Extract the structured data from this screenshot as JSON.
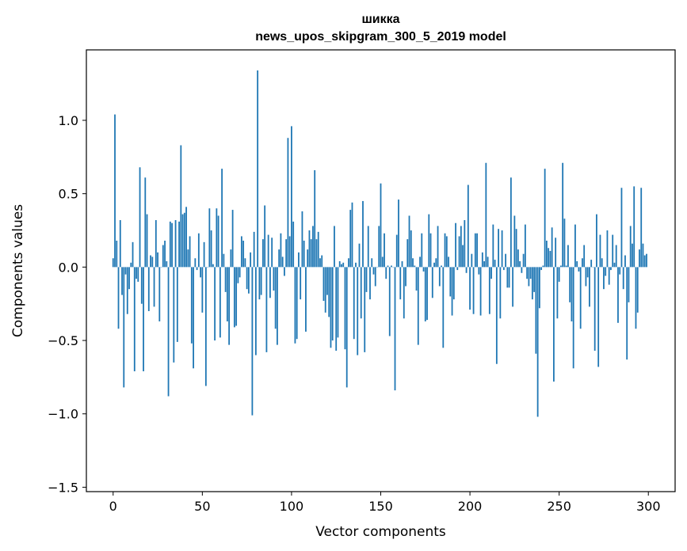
{
  "chart_data": {
    "type": "bar",
    "title_line1": "шикка",
    "title_line2": "news_upos_skipgram_300_5_2019 model",
    "xlabel": "Vector components",
    "ylabel": "Components values",
    "xlim": [
      -15,
      315
    ],
    "ylim": [
      -1.53,
      1.48
    ],
    "xticks": [
      0,
      50,
      100,
      150,
      200,
      250,
      300
    ],
    "xtick_labels": [
      "0",
      "50",
      "100",
      "150",
      "200",
      "250",
      "300"
    ],
    "yticks": [
      -1.5,
      -1.0,
      -0.5,
      0.0,
      0.5,
      1.0
    ],
    "ytick_labels": [
      "−1.5",
      "−1.0",
      "−0.5",
      "0.0",
      "0.5",
      "1.0"
    ],
    "color": "#1f77b4",
    "values": [
      0.06,
      1.04,
      0.18,
      -0.42,
      0.32,
      -0.19,
      -0.82,
      -0.05,
      -0.32,
      -0.15,
      0.03,
      0.17,
      -0.71,
      -0.08,
      -0.1,
      0.68,
      -0.25,
      -0.71,
      0.61,
      0.36,
      -0.3,
      0.08,
      0.07,
      -0.27,
      0.32,
      0.1,
      -0.37,
      0.0,
      0.15,
      0.18,
      0.04,
      -0.88,
      0.31,
      0.3,
      -0.65,
      0.32,
      -0.51,
      0.31,
      0.83,
      0.36,
      0.37,
      0.41,
      0.12,
      0.21,
      -0.52,
      -0.69,
      0.06,
      -0.02,
      0.23,
      -0.07,
      -0.31,
      0.17,
      -0.81,
      0.0,
      0.4,
      0.25,
      0.02,
      -0.5,
      0.4,
      0.35,
      -0.48,
      0.67,
      0.09,
      -0.17,
      -0.37,
      -0.53,
      0.12,
      0.39,
      -0.41,
      -0.4,
      -0.11,
      -0.07,
      0.21,
      0.18,
      0.06,
      -0.15,
      -0.18,
      0.1,
      -1.01,
      0.24,
      -0.6,
      1.34,
      -0.22,
      -0.19,
      0.19,
      0.42,
      -0.58,
      0.22,
      -0.21,
      0.2,
      -0.16,
      -0.42,
      -0.53,
      0.12,
      0.23,
      0.07,
      -0.06,
      0.19,
      0.88,
      0.21,
      0.96,
      0.31,
      -0.52,
      -0.49,
      0.1,
      -0.22,
      0.38,
      0.18,
      -0.44,
      0.12,
      0.25,
      0.19,
      0.28,
      0.66,
      0.19,
      0.24,
      0.06,
      0.08,
      -0.23,
      -0.31,
      -0.19,
      -0.34,
      -0.55,
      -0.5,
      0.28,
      -0.57,
      -0.48,
      0.04,
      0.02,
      0.03,
      -0.56,
      -0.82,
      0.06,
      0.39,
      0.44,
      -0.49,
      0.03,
      -0.6,
      0.16,
      -0.35,
      0.45,
      -0.58,
      -0.17,
      0.28,
      -0.22,
      0.06,
      -0.05,
      -0.13,
      0.0,
      0.28,
      0.57,
      0.07,
      0.23,
      -0.08,
      0.01,
      -0.47,
      0.01,
      0.0,
      -0.84,
      0.22,
      0.46,
      -0.22,
      0.04,
      -0.35,
      -0.13,
      0.19,
      0.35,
      0.25,
      0.06,
      0.01,
      -0.16,
      -0.53,
      0.07,
      0.23,
      -0.03,
      -0.37,
      -0.36,
      0.36,
      0.23,
      -0.21,
      0.03,
      0.06,
      0.28,
      -0.13,
      0.01,
      -0.55,
      0.23,
      0.21,
      0.07,
      -0.2,
      -0.33,
      -0.22,
      0.3,
      -0.02,
      0.21,
      0.28,
      0.15,
      0.32,
      -0.04,
      0.56,
      -0.29,
      0.09,
      -0.32,
      0.23,
      0.23,
      -0.05,
      -0.33,
      0.1,
      0.04,
      0.71,
      0.07,
      -0.32,
      -0.08,
      0.29,
      0.05,
      -0.66,
      0.26,
      -0.35,
      0.25,
      -0.02,
      0.09,
      -0.14,
      -0.14,
      0.61,
      -0.27,
      0.35,
      0.26,
      0.12,
      0.04,
      -0.04,
      0.09,
      0.29,
      -0.08,
      -0.13,
      -0.08,
      -0.22,
      -0.17,
      -0.59,
      -1.02,
      -0.28,
      -0.02,
      0.01,
      0.67,
      0.18,
      0.13,
      0.11,
      0.27,
      -0.78,
      0.2,
      -0.35,
      -0.1,
      0.01,
      0.71,
      0.33,
      0.01,
      0.15,
      -0.24,
      -0.37,
      -0.69,
      0.29,
      0.04,
      -0.03,
      -0.42,
      0.06,
      0.15,
      -0.13,
      -0.07,
      -0.27,
      0.05,
      0.0,
      -0.57,
      0.36,
      -0.68,
      0.22,
      0.06,
      -0.15,
      -0.06,
      0.25,
      -0.12,
      -0.02,
      0.22,
      0.03,
      0.15,
      -0.38,
      -0.05,
      0.54,
      -0.15,
      0.08,
      -0.63,
      -0.24,
      0.28,
      0.16,
      0.55,
      -0.42,
      -0.31,
      0.12,
      0.54,
      0.16,
      0.08,
      0.09
    ]
  }
}
